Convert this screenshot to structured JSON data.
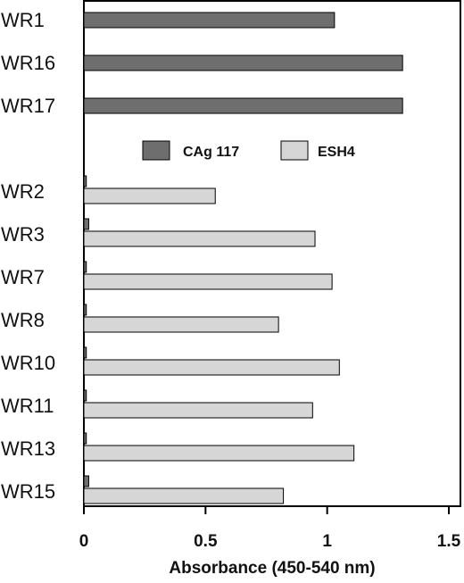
{
  "chart_data": {
    "type": "bar",
    "orientation": "horizontal",
    "xlabel": "Absorbance (450-540 nm)",
    "xlim": [
      0,
      1.55
    ],
    "xticks": [
      0,
      0.5,
      1,
      1.5
    ],
    "xtick_labels": [
      "0",
      "0.5",
      "1",
      "1.5"
    ],
    "grid": false,
    "legend": {
      "placement": "center",
      "entries": [
        "CAg 117",
        "ESH4"
      ]
    },
    "series": [
      {
        "name": "CAg 117",
        "color": "#6e6e6e"
      },
      {
        "name": "ESH4",
        "color": "#d6d6d6"
      }
    ],
    "groups": [
      {
        "label": "WR1",
        "values": {
          "CAg 117": 1.03,
          "ESH4": null
        }
      },
      {
        "label": "WR16",
        "values": {
          "CAg 117": 1.31,
          "ESH4": null
        }
      },
      {
        "label": "WR17",
        "values": {
          "CAg 117": 1.31,
          "ESH4": null
        }
      },
      {
        "label": "WR2",
        "values": {
          "CAg 117": 0.01,
          "ESH4": 0.54
        }
      },
      {
        "label": "WR3",
        "values": {
          "CAg 117": 0.02,
          "ESH4": 0.95
        }
      },
      {
        "label": "WR7",
        "values": {
          "CAg 117": 0.01,
          "ESH4": 1.02
        }
      },
      {
        "label": "WR8",
        "values": {
          "CAg 117": 0.01,
          "ESH4": 0.8
        }
      },
      {
        "label": "WR10",
        "values": {
          "CAg 117": 0.01,
          "ESH4": 1.05
        }
      },
      {
        "label": "WR11",
        "values": {
          "CAg 117": 0.01,
          "ESH4": 0.94
        }
      },
      {
        "label": "WR13",
        "values": {
          "CAg 117": 0.01,
          "ESH4": 1.11
        }
      },
      {
        "label": "WR15",
        "values": {
          "CAg 117": 0.02,
          "ESH4": 0.82
        }
      }
    ]
  }
}
